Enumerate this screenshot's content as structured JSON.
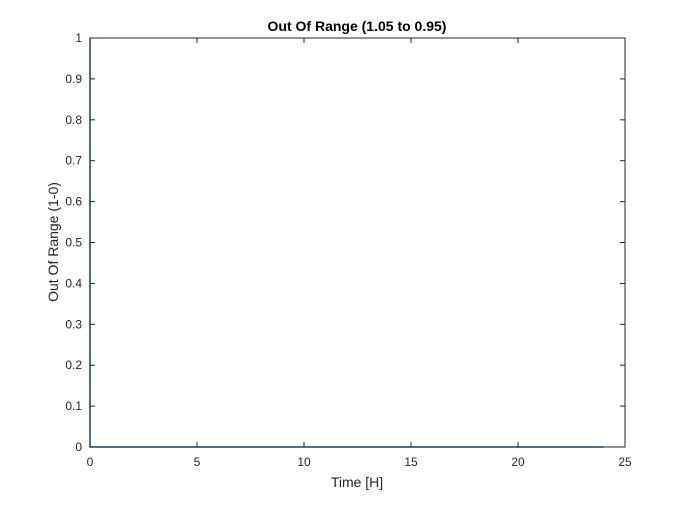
{
  "chart_data": {
    "type": "line",
    "title": "Out Of Range (1.05 to 0.95)",
    "xlabel": "Time [H]",
    "ylabel": "Out Of Range (1-0)",
    "xlim": [
      0,
      25
    ],
    "ylim": [
      0,
      1
    ],
    "xticks": [
      0,
      5,
      10,
      15,
      20,
      25
    ],
    "yticks": [
      0,
      0.1,
      0.2,
      0.3,
      0.4,
      0.5,
      0.6,
      0.7,
      0.8,
      0.9,
      1
    ],
    "grid": false,
    "legend": "none",
    "series": [
      {
        "color": "#0072bd",
        "x": [
          0,
          0,
          0.05,
          24
        ],
        "y": [
          1,
          0,
          0,
          0
        ]
      }
    ]
  }
}
